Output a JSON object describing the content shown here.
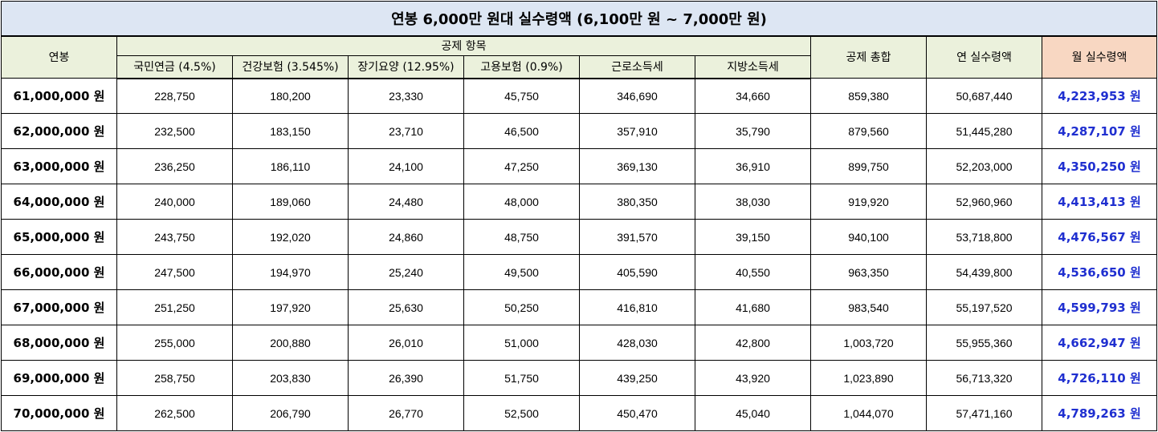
{
  "title": "연봉 6,000만 원대 실수령액 (6,100만 원 ~ 7,000만 원)",
  "headers": {
    "salary": "연봉",
    "deduction_group": "공제 항목",
    "deduction_items": [
      "국민연금 (4.5%)",
      "건강보험 (3.545%)",
      "장기요양 (12.95%)",
      "고용보험 (0.9%)",
      "근로소득세",
      "지방소득세"
    ],
    "total_deduction": "공제 총합",
    "annual_net": "연 실수령액",
    "monthly_net": "월 실수령액"
  },
  "rows": [
    {
      "salary": "61,000,000 원",
      "pension": "228,750",
      "health": "180,200",
      "ltc": "23,330",
      "employment": "45,750",
      "income_tax": "346,690",
      "local_tax": "34,660",
      "total": "859,380",
      "annual": "50,687,440",
      "monthly": "4,223,953 원"
    },
    {
      "salary": "62,000,000 원",
      "pension": "232,500",
      "health": "183,150",
      "ltc": "23,710",
      "employment": "46,500",
      "income_tax": "357,910",
      "local_tax": "35,790",
      "total": "879,560",
      "annual": "51,445,280",
      "monthly": "4,287,107 원"
    },
    {
      "salary": "63,000,000 원",
      "pension": "236,250",
      "health": "186,110",
      "ltc": "24,100",
      "employment": "47,250",
      "income_tax": "369,130",
      "local_tax": "36,910",
      "total": "899,750",
      "annual": "52,203,000",
      "monthly": "4,350,250 원"
    },
    {
      "salary": "64,000,000 원",
      "pension": "240,000",
      "health": "189,060",
      "ltc": "24,480",
      "employment": "48,000",
      "income_tax": "380,350",
      "local_tax": "38,030",
      "total": "919,920",
      "annual": "52,960,960",
      "monthly": "4,413,413 원"
    },
    {
      "salary": "65,000,000 원",
      "pension": "243,750",
      "health": "192,020",
      "ltc": "24,860",
      "employment": "48,750",
      "income_tax": "391,570",
      "local_tax": "39,150",
      "total": "940,100",
      "annual": "53,718,800",
      "monthly": "4,476,567 원"
    },
    {
      "salary": "66,000,000 원",
      "pension": "247,500",
      "health": "194,970",
      "ltc": "25,240",
      "employment": "49,500",
      "income_tax": "405,590",
      "local_tax": "40,550",
      "total": "963,350",
      "annual": "54,439,800",
      "monthly": "4,536,650 원"
    },
    {
      "salary": "67,000,000 원",
      "pension": "251,250",
      "health": "197,920",
      "ltc": "25,630",
      "employment": "50,250",
      "income_tax": "416,810",
      "local_tax": "41,680",
      "total": "983,540",
      "annual": "55,197,520",
      "monthly": "4,599,793 원"
    },
    {
      "salary": "68,000,000 원",
      "pension": "255,000",
      "health": "200,880",
      "ltc": "26,010",
      "employment": "51,000",
      "income_tax": "428,030",
      "local_tax": "42,800",
      "total": "1,003,720",
      "annual": "55,955,360",
      "monthly": "4,662,947 원"
    },
    {
      "salary": "69,000,000 원",
      "pension": "258,750",
      "health": "203,830",
      "ltc": "26,390",
      "employment": "51,750",
      "income_tax": "439,250",
      "local_tax": "43,920",
      "total": "1,023,890",
      "annual": "56,713,320",
      "monthly": "4,726,110 원"
    },
    {
      "salary": "70,000,000 원",
      "pension": "262,500",
      "health": "206,790",
      "ltc": "26,770",
      "employment": "52,500",
      "income_tax": "450,470",
      "local_tax": "45,040",
      "total": "1,044,070",
      "annual": "57,471,160",
      "monthly": "4,789,263 원"
    }
  ]
}
